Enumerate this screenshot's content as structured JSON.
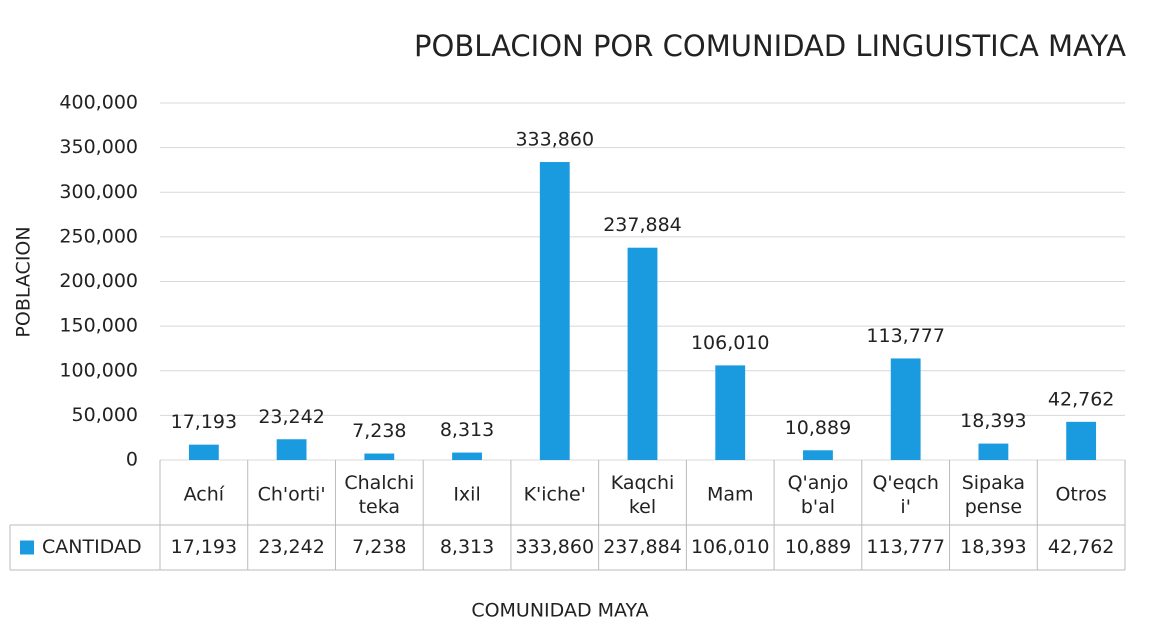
{
  "chart_data": {
    "type": "bar",
    "title": "POBLACION POR COMUNIDAD LINGUISTICA MAYA",
    "y_label": "POBLACION",
    "x_label": "COMUNIDAD MAYA",
    "categories": [
      "Achí",
      "Ch'orti'",
      "Chalchi\nteka",
      "Ixil",
      "K'iche'",
      "Kaqchi\nkel",
      "Mam",
      "Q'anjo\nb'al",
      "Q'eqch\ni'",
      "Sipaka\npense",
      "Otros"
    ],
    "series": [
      {
        "name": "CANTIDAD",
        "color": "#1a9be0",
        "values": [
          17193,
          23242,
          7238,
          8313,
          333860,
          237884,
          106010,
          10889,
          113777,
          18393,
          42762
        ],
        "value_labels": [
          "17,193",
          "23,242",
          "7,238",
          "8,313",
          "333,860",
          "237,884",
          "106,010",
          "10,889",
          "113,777",
          "18,393",
          "42,762"
        ]
      }
    ],
    "ylim": [
      0,
      400000
    ],
    "yticks": [
      0,
      {
        "value": 50000,
        "label": "50,000"
      },
      {
        "value": 100000,
        "label": "100,000"
      },
      {
        "value": 150000,
        "label": "150,000"
      },
      {
        "value": 200000,
        "label": "200,000"
      },
      {
        "value": 250000,
        "label": "250,000"
      },
      {
        "value": 300000,
        "label": "300,000"
      },
      {
        "value": 350000,
        "label": "350,000"
      },
      {
        "value": 400000,
        "label": "400,000"
      }
    ],
    "grid": true,
    "data_table": true
  }
}
